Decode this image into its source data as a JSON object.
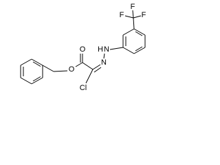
{
  "atom_labels": [
    "O",
    "O",
    "Cl",
    "H",
    "N",
    "N",
    "F",
    "F",
    "F"
  ]
}
